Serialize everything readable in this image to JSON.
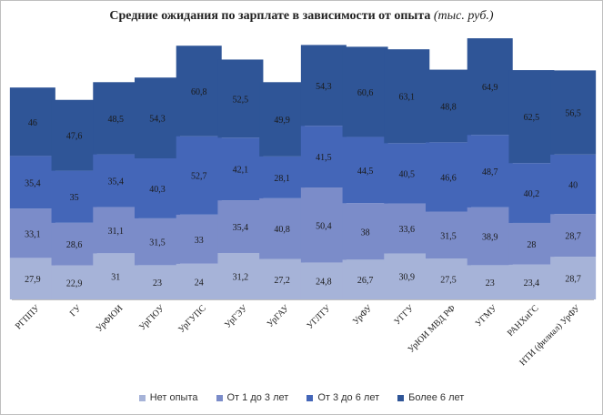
{
  "chart_data": {
    "type": "bar",
    "stacked": true,
    "title": "Средние ожидания по зарплате в зависимости от опыта",
    "title_unit": "(тыс. руб.)",
    "categories": [
      "РГППУ",
      "ГУ",
      "УрФЮИ",
      "УрГЮУ",
      "УрГУПС",
      "УрГЭУ",
      "УрГАУ",
      "УГЛТУ",
      "УрФУ",
      "УГГУ",
      "УрЮИ МВД РФ",
      "УГМУ",
      "РАНХиГС",
      "НТИ (филиал) УрФУ"
    ],
    "series": [
      {
        "name": "Нет опыта",
        "color": "#a6b3d8",
        "values": [
          27.9,
          22.9,
          31,
          23,
          24,
          31.2,
          27.2,
          24.8,
          26.7,
          30.9,
          27.5,
          23,
          23.4,
          28.7
        ],
        "labels": [
          "27,9",
          "22,9",
          "31",
          "23",
          "24",
          "31,2",
          "27,2",
          "24,8",
          "26,7",
          "30,9",
          "27,5",
          "23",
          "23,4",
          "28,7"
        ]
      },
      {
        "name": "От 1 до 3 лет",
        "color": "#7b8cc9",
        "values": [
          33.1,
          28.6,
          31.1,
          31.5,
          33,
          35.4,
          40.8,
          50.4,
          38,
          33.6,
          31.5,
          38.9,
          28,
          28.7
        ],
        "labels": [
          "33,1",
          "28,6",
          "31,1",
          "31,5",
          "33",
          "35,4",
          "40,8",
          "50,4",
          "38",
          "33,6",
          "31,5",
          "38,9",
          "28",
          "28,7"
        ]
      },
      {
        "name": "От 3 до 6 лет",
        "color": "#4466b8",
        "values": [
          35.4,
          35,
          35.4,
          40.3,
          52.7,
          42.1,
          28.1,
          41.5,
          44.5,
          40.5,
          46.6,
          48.7,
          40.2,
          40
        ],
        "labels": [
          "35,4",
          "35",
          "35,4",
          "40,3",
          "52,7",
          "42,1",
          "28,1",
          "41,5",
          "44,5",
          "40,5",
          "46,6",
          "48,7",
          "40,2",
          "40"
        ]
      },
      {
        "name": "Более 6 лет",
        "color": "#2f5597",
        "values": [
          46,
          47.6,
          48.5,
          54.3,
          60.8,
          52.5,
          49.9,
          54.3,
          60.6,
          63.1,
          48.8,
          64.9,
          62.5,
          56.5
        ],
        "labels": [
          "46",
          "47,6",
          "48,5",
          "54,3",
          "60,8",
          "52,5",
          "49,9",
          "54,3",
          "60,6",
          "63,1",
          "48,8",
          "64,9",
          "62,5",
          "56,5"
        ]
      }
    ],
    "ylim": [
      0,
      200
    ],
    "grid": false,
    "legend_position": "bottom"
  }
}
